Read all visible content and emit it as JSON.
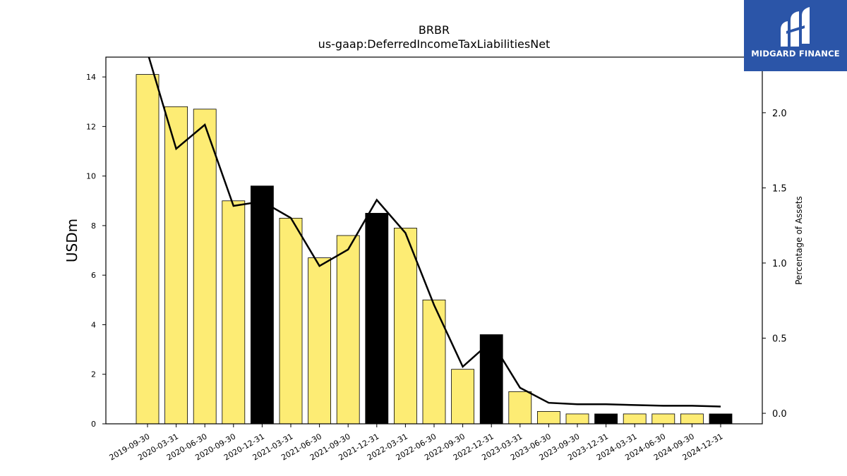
{
  "brand": {
    "name": "MIDGARD FINANCE",
    "bg_color": "#2b55a8"
  },
  "chart_data": {
    "type": "bar",
    "title": "BRBR",
    "subtitle": "us-gaap:DeferredIncomeTaxLiabilitiesNet",
    "ylabel": "USDm",
    "y2label": "Percentage of Assets",
    "ylim": [
      0,
      14.8
    ],
    "y2lim": [
      -0.07,
      2.37
    ],
    "yticks": [
      "0",
      "2",
      "4",
      "6",
      "8",
      "10",
      "12",
      "14"
    ],
    "y2ticks": [
      "0.0",
      "0.5",
      "1.0",
      "1.5",
      "2.0"
    ],
    "categories": [
      "2019-09-30",
      "2020-03-31",
      "2020-06-30",
      "2020-09-30",
      "2020-12-31",
      "2021-03-31",
      "2021-06-30",
      "2021-09-30",
      "2021-12-31",
      "2022-03-31",
      "2022-06-30",
      "2022-09-30",
      "2022-12-31",
      "2023-03-31",
      "2023-06-30",
      "2023-09-30",
      "2023-12-31",
      "2024-03-31",
      "2024-06-30",
      "2024-09-30",
      "2024-12-31"
    ],
    "series": [
      {
        "type": "bar",
        "values": [
          14.1,
          12.8,
          12.7,
          9.0,
          9.6,
          8.3,
          6.7,
          7.6,
          8.5,
          7.9,
          5.0,
          2.2,
          3.6,
          1.3,
          0.5,
          0.4,
          0.4,
          0.4,
          0.4,
          0.4,
          0.4
        ],
        "highlight": [
          false,
          false,
          false,
          false,
          true,
          false,
          false,
          false,
          true,
          false,
          false,
          false,
          true,
          false,
          false,
          false,
          true,
          false,
          false,
          false,
          true
        ]
      },
      {
        "type": "line",
        "axis": "right",
        "values": [
          2.4,
          1.76,
          1.92,
          1.38,
          1.41,
          1.3,
          0.98,
          1.09,
          1.42,
          1.2,
          0.72,
          0.31,
          0.48,
          0.17,
          0.07,
          0.06,
          0.06,
          0.055,
          0.05,
          0.05,
          0.045
        ]
      }
    ],
    "colors": {
      "bar": "#fdec74",
      "bar_highlight": "#000000",
      "line": "#000000"
    }
  }
}
